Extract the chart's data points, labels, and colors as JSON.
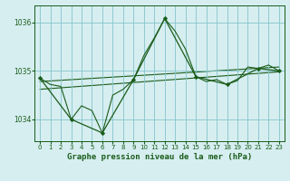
{
  "background_color": "#d6eef0",
  "grid_color": "#85c4cc",
  "line_color": "#1a5c1a",
  "title": "Graphe pression niveau de la mer (hPa)",
  "xlim": [
    -0.5,
    23.5
  ],
  "ylim": [
    1033.55,
    1036.35
  ],
  "yticks": [
    1034,
    1035,
    1036
  ],
  "xticks": [
    0,
    1,
    2,
    3,
    4,
    5,
    6,
    7,
    8,
    9,
    10,
    11,
    12,
    13,
    14,
    15,
    16,
    17,
    18,
    19,
    20,
    21,
    22,
    23
  ],
  "series_main": {
    "x": [
      0,
      1,
      2,
      3,
      4,
      5,
      6,
      7,
      8,
      9,
      10,
      11,
      12,
      13,
      14,
      15,
      16,
      17,
      18,
      19,
      20,
      21,
      22,
      23
    ],
    "y": [
      1034.85,
      1034.72,
      1034.68,
      1034.0,
      1034.28,
      1034.18,
      1033.72,
      1034.5,
      1034.62,
      1034.82,
      1035.32,
      1035.68,
      1036.08,
      1035.82,
      1035.45,
      1034.88,
      1034.78,
      1034.82,
      1034.72,
      1034.8,
      1035.08,
      1035.05,
      1035.12,
      1035.0
    ]
  },
  "series_3h": {
    "x": [
      0,
      3,
      6,
      9,
      12,
      15,
      18,
      21,
      23
    ],
    "y": [
      1034.85,
      1034.0,
      1033.72,
      1034.82,
      1036.08,
      1034.88,
      1034.72,
      1035.05,
      1035.0
    ]
  },
  "trend1": {
    "x": [
      0,
      23
    ],
    "y": [
      1034.78,
      1035.08
    ]
  },
  "trend2": {
    "x": [
      0,
      23
    ],
    "y": [
      1034.62,
      1034.98
    ]
  }
}
